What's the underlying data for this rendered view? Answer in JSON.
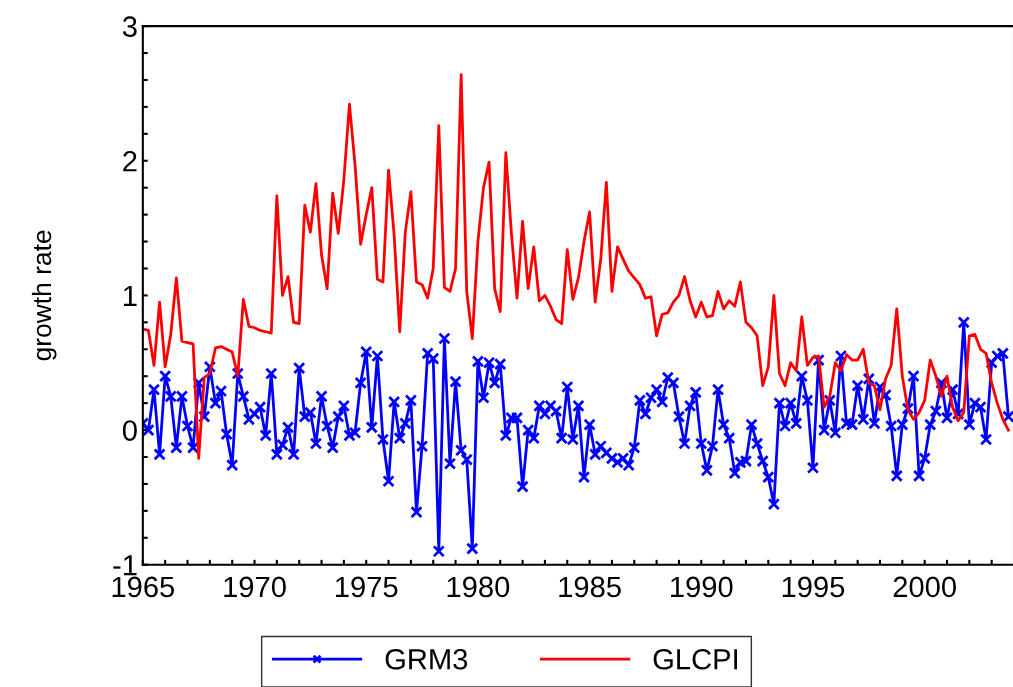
{
  "chart_data": {
    "type": "line",
    "ylabel": "growth rate",
    "xlim": [
      1965,
      2004
    ],
    "ylim": [
      -1,
      3
    ],
    "xticks": [
      1965,
      {
        "value": 1966,
        "label": null
      },
      {
        "value": 1967,
        "label": null
      },
      {
        "value": 1968,
        "label": null
      },
      {
        "value": 1969,
        "label": null
      },
      1970,
      {
        "value": 1971,
        "label": null
      },
      {
        "value": 1972,
        "label": null
      },
      {
        "value": 1973,
        "label": null
      },
      {
        "value": 1974,
        "label": null
      },
      1975,
      {
        "value": 1976,
        "label": null
      },
      {
        "value": 1977,
        "label": null
      },
      {
        "value": 1978,
        "label": null
      },
      {
        "value": 1979,
        "label": null
      },
      1980,
      {
        "value": 1981,
        "label": null
      },
      {
        "value": 1982,
        "label": null
      },
      {
        "value": 1983,
        "label": null
      },
      {
        "value": 1984,
        "label": null
      },
      1985,
      {
        "value": 1986,
        "label": null
      },
      {
        "value": 1987,
        "label": null
      },
      {
        "value": 1988,
        "label": null
      },
      {
        "value": 1989,
        "label": null
      },
      1990,
      {
        "value": 1991,
        "label": null
      },
      {
        "value": 1992,
        "label": null
      },
      {
        "value": 1993,
        "label": null
      },
      {
        "value": 1994,
        "label": null
      },
      1995,
      {
        "value": 1996,
        "label": null
      },
      {
        "value": 1997,
        "label": null
      },
      {
        "value": 1998,
        "label": null
      },
      {
        "value": 1999,
        "label": null
      },
      2000,
      {
        "value": 2001,
        "label": null
      },
      {
        "value": 2002,
        "label": null
      },
      {
        "value": 2003,
        "label": null
      }
    ],
    "yticks": [
      -1,
      {
        "value": -0.8,
        "label": null
      },
      {
        "value": -0.6,
        "label": null
      },
      {
        "value": -0.4,
        "label": null
      },
      {
        "value": -0.2,
        "label": null
      },
      0,
      {
        "value": 0.2,
        "label": null
      },
      {
        "value": 0.4,
        "label": null
      },
      {
        "value": 0.6,
        "label": null
      },
      {
        "value": 0.8,
        "label": null
      },
      1,
      {
        "value": 1.2,
        "label": null
      },
      {
        "value": 1.4,
        "label": null
      },
      {
        "value": 1.6,
        "label": null
      },
      {
        "value": 1.8,
        "label": null
      },
      2,
      {
        "value": 2.2,
        "label": null
      },
      {
        "value": 2.4,
        "label": null
      },
      {
        "value": 2.6,
        "label": null
      },
      {
        "value": 2.8,
        "label": null
      },
      3
    ],
    "grid": false,
    "legend": "bottom",
    "series": [
      {
        "name": "GRM3",
        "color": "#0000ff",
        "marker": "cross",
        "x": [
          1965,
          1965.25,
          1965.5,
          1965.75,
          1966,
          1966.25,
          1966.5,
          1966.75,
          1967,
          1967.25,
          1967.5,
          1967.75,
          1968,
          1968.25,
          1968.5,
          1968.75,
          1969,
          1969.25,
          1969.5,
          1969.75,
          1970,
          1970.25,
          1970.5,
          1970.75,
          1971,
          1971.25,
          1971.5,
          1971.75,
          1972,
          1972.25,
          1972.5,
          1972.75,
          1973,
          1973.25,
          1973.5,
          1973.75,
          1974,
          1974.25,
          1974.5,
          1974.75,
          1975,
          1975.25,
          1975.5,
          1975.75,
          1976,
          1976.25,
          1976.5,
          1976.75,
          1977,
          1977.25,
          1977.5,
          1977.75,
          1978,
          1978.25,
          1978.5,
          1978.75,
          1979,
          1979.25,
          1979.5,
          1979.75,
          1980,
          1980.25,
          1980.5,
          1980.75,
          1981,
          1981.25,
          1981.5,
          1981.75,
          1982,
          1982.25,
          1982.5,
          1982.75,
          1983,
          1983.25,
          1983.5,
          1983.75,
          1984,
          1984.25,
          1984.5,
          1984.75,
          1985,
          1985.25,
          1985.5,
          1985.75,
          1986,
          1986.25,
          1986.5,
          1986.75,
          1987,
          1987.25,
          1987.5,
          1987.75,
          1988,
          1988.25,
          1988.5,
          1988.75,
          1989,
          1989.25,
          1989.5,
          1989.75,
          1990,
          1990.25,
          1990.5,
          1990.75,
          1991,
          1991.25,
          1991.5,
          1991.75,
          1992,
          1992.25,
          1992.5,
          1992.75,
          1993,
          1993.25,
          1993.5,
          1993.75,
          1994,
          1994.25,
          1994.5,
          1994.75,
          1995,
          1995.25,
          1995.5,
          1995.75,
          1996,
          1996.25,
          1996.5,
          1996.75,
          1997,
          1997.25,
          1997.5,
          1997.75,
          1998,
          1998.25,
          1998.5,
          1998.75,
          1999,
          1999.25,
          1999.5,
          1999.75,
          2000,
          2000.25,
          2000.5,
          2000.75,
          2001,
          2001.25,
          2001.5,
          2001.75,
          2002,
          2002.25,
          2002.5,
          2002.75,
          2003,
          2003.25,
          2003.5,
          2003.75
        ],
        "values": [
          0.05,
          0.0,
          0.3,
          -0.18,
          0.4,
          0.25,
          -0.13,
          0.25,
          0.03,
          -0.13,
          0.35,
          0.1,
          0.47,
          0.2,
          0.29,
          -0.03,
          -0.26,
          0.42,
          0.25,
          0.08,
          0.12,
          0.17,
          -0.04,
          0.42,
          -0.18,
          -0.11,
          0.02,
          -0.18,
          0.46,
          0.1,
          0.13,
          -0.1,
          0.25,
          0.03,
          -0.13,
          0.1,
          0.18,
          -0.04,
          -0.02,
          0.35,
          0.58,
          0.02,
          0.55,
          -0.07,
          -0.38,
          0.21,
          -0.06,
          0.05,
          0.22,
          -0.61,
          -0.12,
          0.57,
          0.53,
          -0.9,
          0.68,
          -0.25,
          0.36,
          -0.15,
          -0.22,
          -0.88,
          0.51,
          0.24,
          0.5,
          0.35,
          0.49,
          -0.04,
          0.09,
          0.09,
          -0.42,
          0.0,
          -0.06,
          0.18,
          0.12,
          0.18,
          0.14,
          -0.06,
          0.32,
          -0.07,
          0.18,
          -0.35,
          0.04,
          -0.18,
          -0.12,
          -0.17,
          -0.21,
          -0.24,
          -0.21,
          -0.26,
          -0.13,
          0.22,
          0.12,
          0.24,
          0.3,
          0.21,
          0.39,
          0.35,
          0.1,
          -0.1,
          0.18,
          0.28,
          -0.1,
          -0.3,
          -0.12,
          0.3,
          0.04,
          -0.06,
          -0.32,
          -0.24,
          -0.23,
          0.04,
          -0.1,
          -0.23,
          -0.35,
          -0.55,
          0.2,
          0.03,
          0.2,
          0.05,
          0.4,
          0.22,
          -0.28,
          0.52,
          0.0,
          0.22,
          -0.02,
          0.55,
          0.05,
          0.04,
          0.33,
          0.08,
          0.38,
          0.05,
          0.32,
          0.26,
          0.03,
          -0.34,
          0.04,
          0.16,
          0.4,
          -0.34,
          -0.21,
          0.04,
          0.14,
          0.35,
          0.09,
          0.3,
          0.12,
          0.8,
          0.04,
          0.2,
          0.17,
          -0.07,
          0.5,
          0.55,
          0.57,
          0.1
        ]
      },
      {
        "name": "GLCPI",
        "color": "#ff0000",
        "marker": "none",
        "x": [
          1965,
          1965.25,
          1965.5,
          1965.75,
          1966,
          1966.25,
          1966.5,
          1966.75,
          1967,
          1967.25,
          1967.5,
          1967.75,
          1968,
          1968.25,
          1968.5,
          1968.75,
          1969,
          1969.25,
          1969.5,
          1969.75,
          1970,
          1970.25,
          1970.5,
          1970.75,
          1971,
          1971.25,
          1971.5,
          1971.75,
          1972,
          1972.25,
          1972.5,
          1972.75,
          1973,
          1973.25,
          1973.5,
          1973.75,
          1974,
          1974.25,
          1974.5,
          1974.75,
          1975,
          1975.25,
          1975.5,
          1975.75,
          1976,
          1976.25,
          1976.5,
          1976.75,
          1977,
          1977.25,
          1977.5,
          1977.75,
          1978,
          1978.25,
          1978.5,
          1978.75,
          1979,
          1979.25,
          1979.5,
          1979.75,
          1980,
          1980.25,
          1980.5,
          1980.75,
          1981,
          1981.25,
          1981.5,
          1981.75,
          1982,
          1982.25,
          1982.5,
          1982.75,
          1983,
          1983.25,
          1983.5,
          1983.75,
          1984,
          1984.25,
          1984.5,
          1984.75,
          1985,
          1985.25,
          1985.5,
          1985.75,
          1986,
          1986.25,
          1986.5,
          1986.75,
          1987,
          1987.25,
          1987.5,
          1987.75,
          1988,
          1988.25,
          1988.5,
          1988.75,
          1989,
          1989.25,
          1989.5,
          1989.75,
          1990,
          1990.25,
          1990.5,
          1990.75,
          1991,
          1991.25,
          1991.5,
          1991.75,
          1992,
          1992.25,
          1992.5,
          1992.75,
          1993,
          1993.25,
          1993.5,
          1993.75,
          1994,
          1994.25,
          1994.5,
          1994.75,
          1995,
          1995.25,
          1995.5,
          1995.75,
          1996,
          1996.25,
          1996.5,
          1996.75,
          1997,
          1997.25,
          1997.5,
          1997.75,
          1998,
          1998.25,
          1998.5,
          1998.75,
          1999,
          1999.25,
          1999.5,
          1999.75,
          2000,
          2000.25,
          2000.5,
          2000.75,
          2001,
          2001.25,
          2001.5,
          2001.75,
          2002,
          2002.25,
          2002.5,
          2002.75,
          2003,
          2003.25,
          2003.5,
          2003.75
        ],
        "values": [
          0.75,
          0.74,
          0.48,
          0.95,
          0.47,
          0.71,
          1.13,
          0.66,
          0.65,
          0.64,
          -0.21,
          0.39,
          0.42,
          0.61,
          0.62,
          0.6,
          0.58,
          0.4,
          0.97,
          0.77,
          0.76,
          0.74,
          0.73,
          0.72,
          1.74,
          1.0,
          1.14,
          0.8,
          0.79,
          1.67,
          1.47,
          1.83,
          1.3,
          1.05,
          1.76,
          1.46,
          1.86,
          2.42,
          1.97,
          1.38,
          1.6,
          1.8,
          1.12,
          1.1,
          1.93,
          1.45,
          0.73,
          1.47,
          1.77,
          1.1,
          1.08,
          0.98,
          1.2,
          2.26,
          1.06,
          1.03,
          1.2,
          2.64,
          1.03,
          0.68,
          1.4,
          1.8,
          1.99,
          1.05,
          0.88,
          2.06,
          1.46,
          0.98,
          1.55,
          1.05,
          1.36,
          0.96,
          1.0,
          0.92,
          0.82,
          0.79,
          1.34,
          0.97,
          1.13,
          1.4,
          1.62,
          0.95,
          1.27,
          1.84,
          1.03,
          1.36,
          1.27,
          1.18,
          1.13,
          1.08,
          0.98,
          0.99,
          0.7,
          0.86,
          0.87,
          0.95,
          1.0,
          1.14,
          0.96,
          0.84,
          0.95,
          0.84,
          0.85,
          1.03,
          0.9,
          0.96,
          0.92,
          1.1,
          0.8,
          0.76,
          0.7,
          0.33,
          0.47,
          1.0,
          0.42,
          0.33,
          0.5,
          0.44,
          0.84,
          0.48,
          0.54,
          0.55,
          0.17,
          0.25,
          0.5,
          0.44,
          0.56,
          0.52,
          0.52,
          0.6,
          0.35,
          0.33,
          0.15,
          0.38,
          0.48,
          0.9,
          0.4,
          0.15,
          0.08,
          0.13,
          0.22,
          0.52,
          0.4,
          0.25,
          0.4,
          0.17,
          0.07,
          0.13,
          0.7,
          0.71,
          0.6,
          0.57,
          0.35,
          0.2,
          0.08,
          0.0
        ]
      }
    ]
  }
}
